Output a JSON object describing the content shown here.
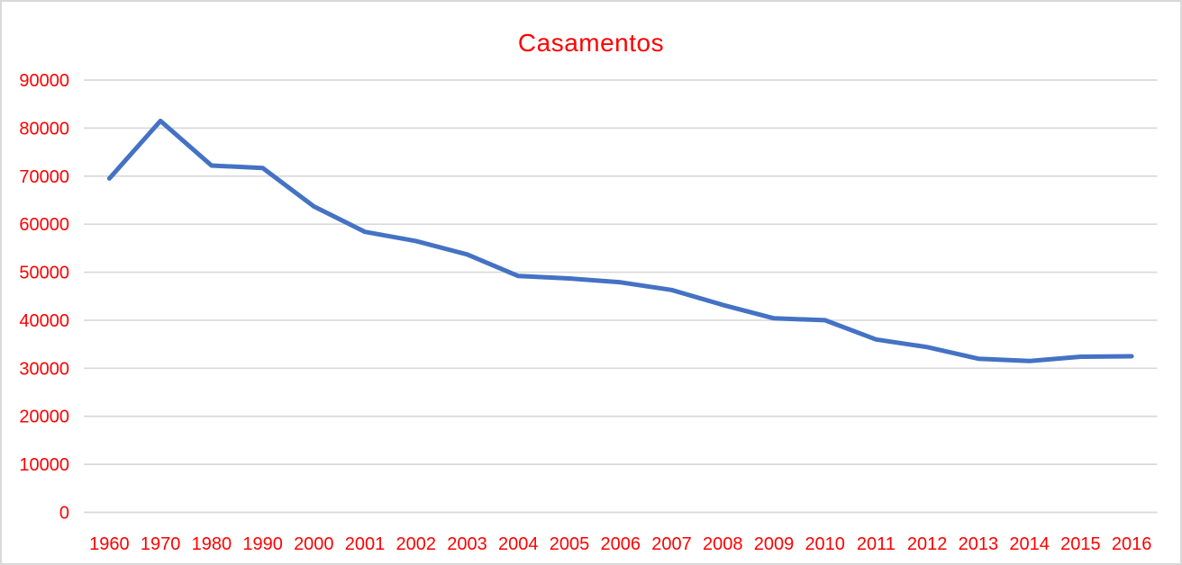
{
  "chart_data": {
    "type": "line",
    "title": "Casamentos",
    "categories": [
      "1960",
      "1970",
      "1980",
      "1990",
      "2000",
      "2001",
      "2002",
      "2003",
      "2004",
      "2005",
      "2006",
      "2007",
      "2008",
      "2009",
      "2010",
      "2011",
      "2012",
      "2013",
      "2014",
      "2015",
      "2016"
    ],
    "series": [
      {
        "name": "Casamentos",
        "values": [
          69500,
          81500,
          72200,
          71700,
          63700,
          58400,
          56500,
          53700,
          49200,
          48700,
          47900,
          46300,
          43200,
          40400,
          40000,
          36000,
          34400,
          32000,
          31500,
          32400,
          32500
        ]
      }
    ],
    "xlabel": "",
    "ylabel": "",
    "ylim": [
      0,
      90000
    ],
    "yticks": [
      0,
      10000,
      20000,
      30000,
      40000,
      50000,
      60000,
      70000,
      80000,
      90000
    ],
    "grid": "horizontal",
    "legend": "none",
    "colors": {
      "line": "#4472C4",
      "text": "#FF0000",
      "gridline": "#D9D9D9",
      "frame_border": "#D9D9D9",
      "background": "#FFFFFF"
    }
  }
}
